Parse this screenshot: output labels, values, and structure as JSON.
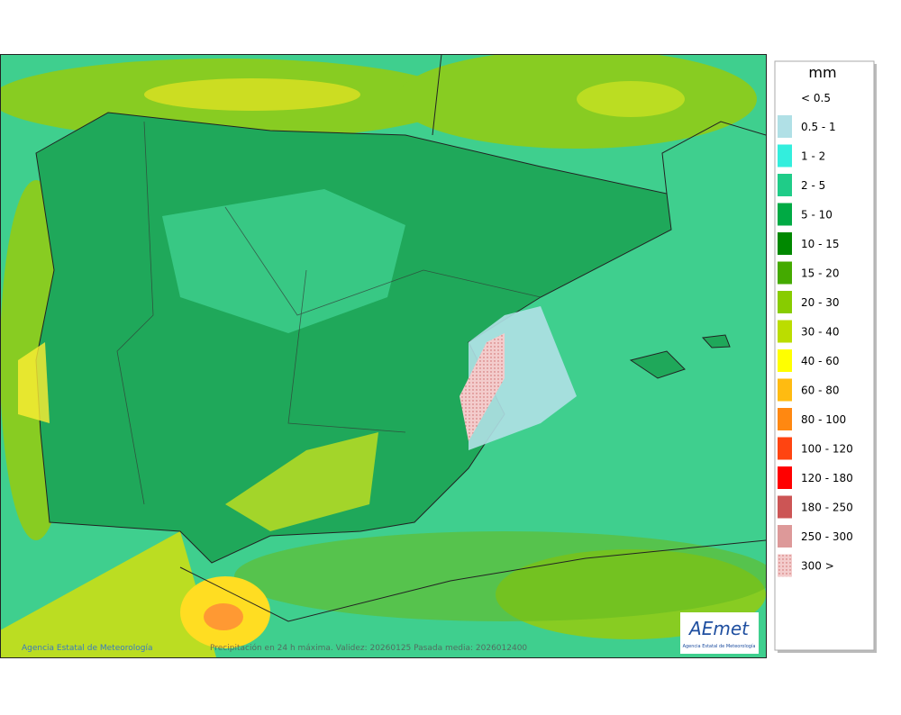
{
  "legend": {
    "title": "mm",
    "below_label": "< 0.5",
    "items": [
      {
        "label": "0.5 - 1",
        "color": "#b0e0e6"
      },
      {
        "label": "1 - 2",
        "color": "#33eedd"
      },
      {
        "label": "2 - 5",
        "color": "#1fcc88"
      },
      {
        "label": "5 - 10",
        "color": "#00aa44"
      },
      {
        "label": "10 - 15",
        "color": "#008800"
      },
      {
        "label": "15 - 20",
        "color": "#44aa00"
      },
      {
        "label": "20 - 30",
        "color": "#88cc00"
      },
      {
        "label": "30 - 40",
        "color": "#bbdd00"
      },
      {
        "label": "40 - 60",
        "color": "#ffff00"
      },
      {
        "label": "60 - 80",
        "color": "#ffbb11"
      },
      {
        "label": "80 - 100",
        "color": "#ff8811"
      },
      {
        "label": "100 - 120",
        "color": "#ff4411"
      },
      {
        "label": "120 - 180",
        "color": "#ff0000"
      },
      {
        "label": "180 - 250",
        "color": "#cc5555"
      },
      {
        "label": "250 - 300",
        "color": "#dd9999"
      },
      {
        "label": "300 >",
        "color": "#f3cccc"
      }
    ]
  },
  "map": {
    "credit": "Agencia Estatal de Meteorología",
    "caption": "Precipitación en 24 h máxima. Validez: 20260125 Pasada media: 2026012400"
  },
  "logo": {
    "name": "AEmet",
    "subtitle": "Agencia Estatal de Meteorología"
  }
}
